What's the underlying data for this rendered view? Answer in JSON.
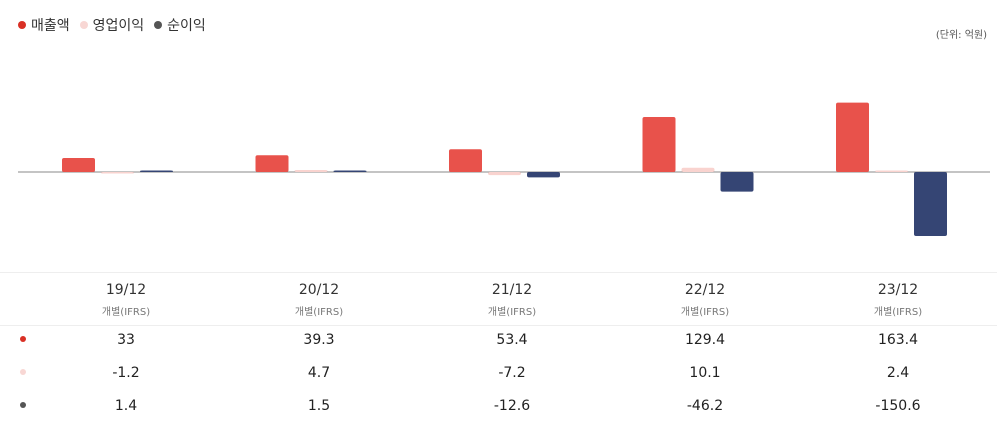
{
  "legend": [
    {
      "label": "매출액",
      "color": "#d93025"
    },
    {
      "label": "영업이익",
      "color": "#f8d7d4"
    },
    {
      "label": "순이익",
      "color": "#555555"
    }
  ],
  "unit_label": "(단위: 억원)",
  "periods": [
    {
      "label": "19/12",
      "sub": "개별(IFRS)"
    },
    {
      "label": "20/12",
      "sub": "개별(IFRS)"
    },
    {
      "label": "21/12",
      "sub": "개별(IFRS)"
    },
    {
      "label": "22/12",
      "sub": "개별(IFRS)"
    },
    {
      "label": "23/12",
      "sub": "개별(IFRS)"
    }
  ],
  "table": {
    "rows": [
      {
        "dot_color": "#d93025",
        "values": [
          "33",
          "39.3",
          "53.4",
          "129.4",
          "163.4"
        ]
      },
      {
        "dot_color": "#f8d7d4",
        "values": [
          "-1.2",
          "4.7",
          "-7.2",
          "10.1",
          "2.4"
        ]
      },
      {
        "dot_color": "#555555",
        "values": [
          "1.4",
          "1.5",
          "-12.6",
          "-46.2",
          "-150.6"
        ]
      }
    ]
  },
  "chart_data": {
    "type": "bar",
    "categories": [
      "19/12",
      "20/12",
      "21/12",
      "22/12",
      "23/12"
    ],
    "series": [
      {
        "name": "매출액",
        "color": "#e8524b",
        "values": [
          33,
          39.3,
          53.4,
          129.4,
          163.4
        ]
      },
      {
        "name": "영업이익",
        "color": "#f9d3cf",
        "values": [
          -1.2,
          4.7,
          -7.2,
          10.1,
          2.4
        ]
      },
      {
        "name": "순이익",
        "color": "#354574",
        "values": [
          1.4,
          1.5,
          -12.6,
          -46.2,
          -150.6
        ]
      }
    ],
    "ylim": [
      -236,
      236
    ],
    "grid": false,
    "legend_position": "top-left"
  }
}
